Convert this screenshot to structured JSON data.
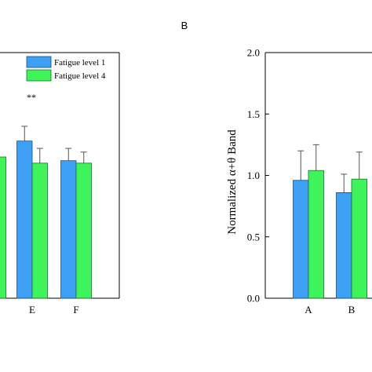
{
  "chart_data": [
    {
      "panel_label": "",
      "type": "bar",
      "categories": [
        "",
        "E",
        "F"
      ],
      "series": [
        {
          "name": "Fatigue level 1",
          "color": "#3ea0f5",
          "values": [
            null,
            1.28,
            1.12
          ]
        },
        {
          "name": "Fatigue level 4",
          "color": "#3df55a",
          "values": [
            1.15,
            1.1,
            1.1
          ]
        }
      ],
      "errors": [
        {
          "series": "Fatigue level 1",
          "values": [
            null,
            0.12,
            0.1
          ]
        },
        {
          "series": "Fatigue level 4",
          "values": [
            null,
            0.12,
            0.09
          ]
        }
      ],
      "annotations": [
        {
          "text": "**",
          "category": "E"
        }
      ],
      "legend": "top-right",
      "grid": false
    },
    {
      "panel_label": "B",
      "type": "bar",
      "categories": [
        "A",
        "B",
        ""
      ],
      "series": [
        {
          "name": "Fatigue level 1",
          "color": "#3ea0f5",
          "values": [
            0.96,
            0.86,
            null
          ]
        },
        {
          "name": "Fatigue level 4",
          "color": "#3df55a",
          "values": [
            1.04,
            0.97,
            null
          ]
        }
      ],
      "errors": [
        {
          "series": "Fatigue level 1",
          "values": [
            0.24,
            0.15,
            null
          ]
        },
        {
          "series": "Fatigue level 4",
          "values": [
            0.21,
            0.22,
            null
          ]
        }
      ],
      "ylabel": "Normalized α+θ Band",
      "ylim": [
        0.0,
        2.0
      ],
      "yticks": [
        "0.0",
        "0.5",
        "1.0",
        "1.5",
        "2.0"
      ],
      "grid": false
    }
  ]
}
